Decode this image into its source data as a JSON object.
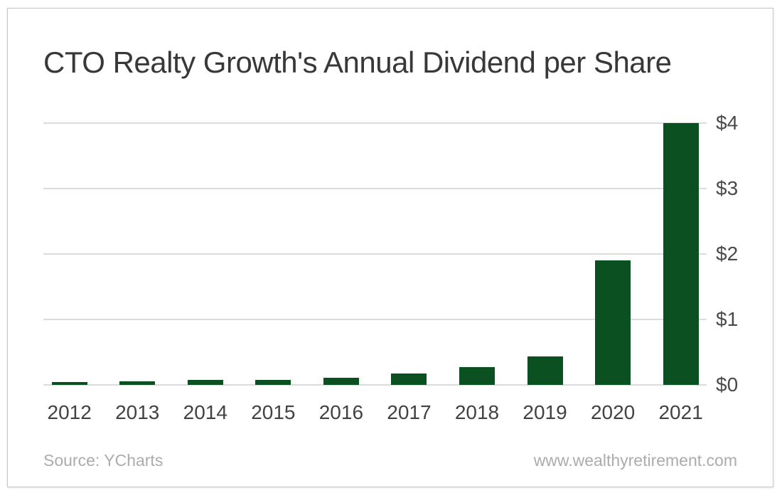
{
  "chart": {
    "title": "CTO Realty Growth's Annual Dividend per Share"
  },
  "chart_data": {
    "type": "bar",
    "title": "CTO Realty Growth's Annual Dividend per Share",
    "categories": [
      "2012",
      "2013",
      "2014",
      "2015",
      "2016",
      "2017",
      "2018",
      "2019",
      "2020",
      "2021"
    ],
    "values": [
      0.04,
      0.05,
      0.08,
      0.08,
      0.11,
      0.17,
      0.27,
      0.44,
      1.9,
      4.0
    ],
    "xlabel": "",
    "ylabel": "",
    "ylim": [
      0,
      4
    ],
    "yticks": [
      {
        "label": "$0",
        "value": 0
      },
      {
        "label": "$1",
        "value": 1
      },
      {
        "label": "$2",
        "value": 2
      },
      {
        "label": "$3",
        "value": 3
      },
      {
        "label": "$4",
        "value": 4
      }
    ],
    "grid": true,
    "legend": false,
    "bar_color": "#0a5021",
    "gridline_color": "#dcdcdc"
  },
  "footer": {
    "source": "Source: YCharts",
    "website": "www.wealthyretirement.com"
  }
}
